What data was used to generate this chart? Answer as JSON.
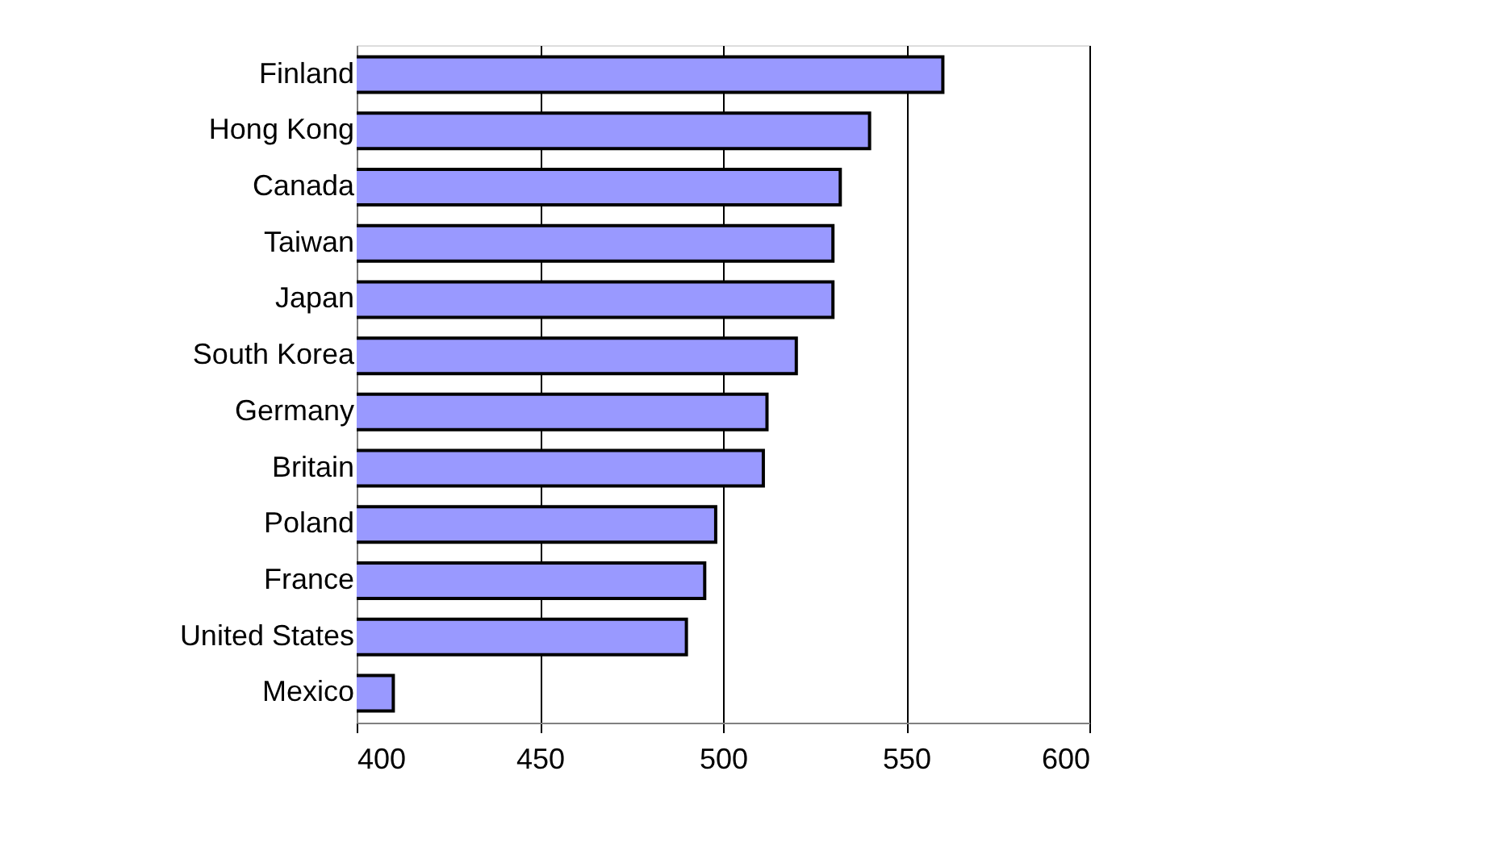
{
  "chart_data": {
    "type": "bar",
    "orientation": "horizontal",
    "categories": [
      "Finland",
      "Hong Kong",
      "Canada",
      "Taiwan",
      "Japan",
      "South Korea",
      "Germany",
      "Britain",
      "Poland",
      "France",
      "United States",
      "Mexico"
    ],
    "values": [
      560,
      540,
      532,
      530,
      530,
      520,
      512,
      511,
      498,
      495,
      490,
      410
    ],
    "color": "#9999ff",
    "xlim": [
      400,
      600
    ],
    "xticks": [
      400,
      450,
      500,
      550,
      600
    ],
    "grid": "x"
  }
}
